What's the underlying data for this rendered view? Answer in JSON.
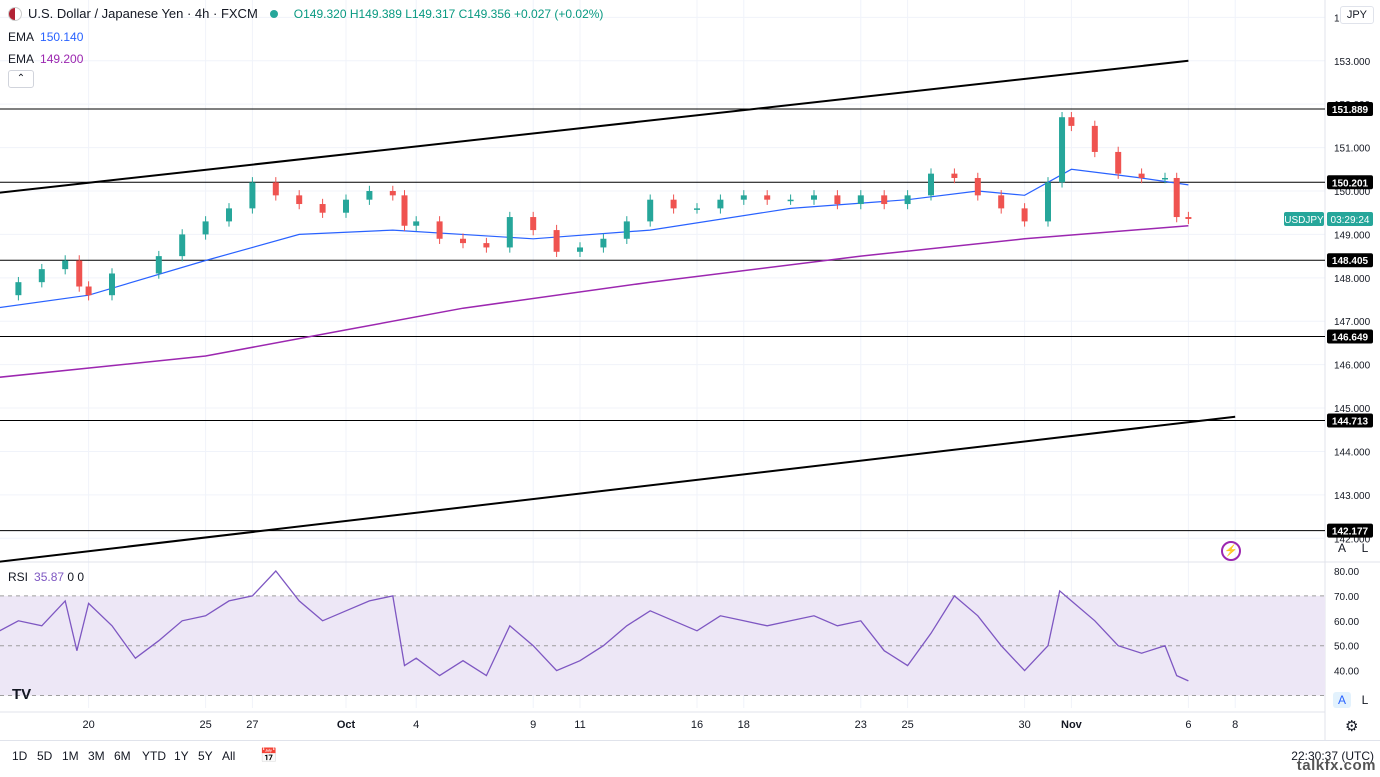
{
  "header": {
    "symbol_title": "U.S. Dollar / Japanese Yen · 4h · FXCM",
    "open": "O149.320",
    "high": "H149.389",
    "low": "L149.317",
    "close": "C149.356",
    "change": "+0.027 (+0.02%)"
  },
  "ema_fast": {
    "label": "EMA",
    "value": "150.140",
    "color": "#2962ff"
  },
  "ema_slow": {
    "label": "EMA",
    "value": "149.200",
    "color": "#9c27b0"
  },
  "rsi": {
    "label": "RSI",
    "value": "35.87",
    "extra1": "0",
    "extra2": "0",
    "color": "#7e57c2"
  },
  "currency_label": "JPY",
  "panel_buttons": {
    "auto": "A",
    "log": "L"
  },
  "symbol_tag": "USDJPY",
  "countdown": "03:29:24",
  "ranges": [
    "1D",
    "5D",
    "1M",
    "3M",
    "6M",
    "YTD",
    "1Y",
    "5Y",
    "All"
  ],
  "clock": "22:30:37 (UTC)",
  "watermark": "talkfx.com",
  "colors": {
    "up": "#26a69a",
    "down": "#ef5350",
    "rsi_band": "#ede7f6"
  },
  "chart_data": {
    "type": "candlestick",
    "timeframe": "4h",
    "y_axis": {
      "range": [
        141.5,
        154.4
      ],
      "ticks": [
        "142.000",
        "143.000",
        "144.000",
        "145.000",
        "146.000",
        "147.000",
        "148.000",
        "149.000",
        "150.000",
        "151.000",
        "152.000",
        "153.000",
        "154.000"
      ]
    },
    "x_axis": {
      "tick_labels": [
        "20",
        "25",
        "27",
        "Oct",
        "4",
        "9",
        "11",
        "16",
        "18",
        "23",
        "25",
        "30",
        "Nov",
        "6",
        "8"
      ]
    },
    "horizontal_levels": [
      "151.889",
      "150.201",
      "148.405",
      "146.649",
      "144.713",
      "142.177"
    ],
    "trendlines": [
      {
        "from": [
          "Sep 16",
          149.95
        ],
        "to": [
          "Nov 6",
          153.0
        ]
      },
      {
        "from": [
          "Sep 16",
          141.45
        ],
        "to": [
          "Nov 8",
          144.8
        ]
      }
    ],
    "last_price": 149.356,
    "close_path": [
      [
        "Sep 16",
        147.6
      ],
      [
        "Sep 17",
        147.9
      ],
      [
        "Sep 18",
        148.2
      ],
      [
        "Sep 19",
        148.4
      ],
      [
        "Sep 19.6",
        147.8
      ],
      [
        "Sep 20",
        147.6
      ],
      [
        "Sep 21",
        148.1
      ],
      [
        "Sep 23",
        148.5
      ],
      [
        "Sep 24",
        149.0
      ],
      [
        "Sep 25",
        149.3
      ],
      [
        "Sep 26",
        149.6
      ],
      [
        "Sep 27",
        150.2
      ],
      [
        "Sep 28",
        149.9
      ],
      [
        "Sep 29",
        149.7
      ],
      [
        "Sep 30",
        149.5
      ],
      [
        "Oct 1",
        149.8
      ],
      [
        "Oct 2",
        150.0
      ],
      [
        "Oct 3",
        149.9
      ],
      [
        "Oct 3.5",
        149.2
      ],
      [
        "Oct 4",
        149.3
      ],
      [
        "Oct 5",
        148.9
      ],
      [
        "Oct 6",
        148.8
      ],
      [
        "Oct 7",
        148.7
      ],
      [
        "Oct 8",
        149.4
      ],
      [
        "Oct 9",
        149.1
      ],
      [
        "Oct 10",
        148.6
      ],
      [
        "Oct 11",
        148.7
      ],
      [
        "Oct 12",
        148.9
      ],
      [
        "Oct 13",
        149.3
      ],
      [
        "Oct 14",
        149.8
      ],
      [
        "Oct 15",
        149.6
      ],
      [
        "Oct 16",
        149.6
      ],
      [
        "Oct 17",
        149.8
      ],
      [
        "Oct 18",
        149.9
      ],
      [
        "Oct 19",
        149.8
      ],
      [
        "Oct 20",
        149.8
      ],
      [
        "Oct 21",
        149.9
      ],
      [
        "Oct 22",
        149.7
      ],
      [
        "Oct 23",
        149.9
      ],
      [
        "Oct 24",
        149.7
      ],
      [
        "Oct 25",
        149.9
      ],
      [
        "Oct 26",
        150.4
      ],
      [
        "Oct 27",
        150.3
      ],
      [
        "Oct 28",
        149.9
      ],
      [
        "Oct 29",
        149.6
      ],
      [
        "Oct 30",
        149.3
      ],
      [
        "Oct 31",
        150.2
      ],
      [
        "Oct 31.6",
        151.7
      ],
      [
        "Nov 1",
        151.5
      ],
      [
        "Nov 2",
        150.9
      ],
      [
        "Nov 3",
        150.4
      ],
      [
        "Nov 4",
        150.3
      ],
      [
        "Nov 5",
        150.3
      ],
      [
        "Nov 5.5",
        149.4
      ],
      [
        "Nov 6",
        149.356
      ]
    ],
    "ema_fast_path": [
      [
        "Sep 16",
        147.3
      ],
      [
        "Sep 20",
        147.6
      ],
      [
        "Sep 25",
        148.4
      ],
      [
        "Sep 29",
        149.0
      ],
      [
        "Oct 3",
        149.1
      ],
      [
        "Oct 9",
        148.9
      ],
      [
        "Oct 14",
        149.1
      ],
      [
        "Oct 20",
        149.6
      ],
      [
        "Oct 25",
        149.8
      ],
      [
        "Oct 28",
        150.0
      ],
      [
        "Oct 30",
        149.9
      ],
      [
        "Nov 1",
        150.5
      ],
      [
        "Nov 4",
        150.3
      ],
      [
        "Nov 6",
        150.14
      ]
    ],
    "ema_slow_path": [
      [
        "Sep 16",
        145.7
      ],
      [
        "Sep 25",
        146.2
      ],
      [
        "Oct 1",
        146.8
      ],
      [
        "Oct 6",
        147.3
      ],
      [
        "Oct 14",
        147.9
      ],
      [
        "Oct 23",
        148.5
      ],
      [
        "Oct 30",
        148.9
      ],
      [
        "Nov 6",
        149.2
      ]
    ],
    "rsi_axis": {
      "range": [
        25,
        82
      ],
      "ticks": [
        "40.00",
        "50.00",
        "60.00",
        "70.00",
        "80.00"
      ],
      "band": [
        30,
        70
      ]
    },
    "rsi_path": [
      [
        "Sep 16",
        55
      ],
      [
        "Sep 17",
        60
      ],
      [
        "Sep 18",
        58
      ],
      [
        "Sep 19",
        68
      ],
      [
        "Sep 19.5",
        48
      ],
      [
        "Sep 20",
        67
      ],
      [
        "Sep 21",
        58
      ],
      [
        "Sep 22",
        45
      ],
      [
        "Sep 23",
        52
      ],
      [
        "Sep 24",
        60
      ],
      [
        "Sep 25",
        62
      ],
      [
        "Sep 26",
        68
      ],
      [
        "Sep 27",
        70
      ],
      [
        "Sep 28",
        80
      ],
      [
        "Sep 29",
        68
      ],
      [
        "Sep 30",
        60
      ],
      [
        "Oct 1",
        64
      ],
      [
        "Oct 2",
        68
      ],
      [
        "Oct 3",
        70
      ],
      [
        "Oct 3.5",
        42
      ],
      [
        "Oct 4",
        45
      ],
      [
        "Oct 5",
        38
      ],
      [
        "Oct 6",
        44
      ],
      [
        "Oct 7",
        38
      ],
      [
        "Oct 8",
        58
      ],
      [
        "Oct 9",
        50
      ],
      [
        "Oct 10",
        40
      ],
      [
        "Oct 11",
        44
      ],
      [
        "Oct 12",
        50
      ],
      [
        "Oct 13",
        58
      ],
      [
        "Oct 14",
        64
      ],
      [
        "Oct 15",
        60
      ],
      [
        "Oct 16",
        56
      ],
      [
        "Oct 17",
        62
      ],
      [
        "Oct 18",
        60
      ],
      [
        "Oct 19",
        58
      ],
      [
        "Oct 20",
        60
      ],
      [
        "Oct 21",
        62
      ],
      [
        "Oct 22",
        58
      ],
      [
        "Oct 23",
        60
      ],
      [
        "Oct 24",
        48
      ],
      [
        "Oct 25",
        42
      ],
      [
        "Oct 26",
        55
      ],
      [
        "Oct 27",
        70
      ],
      [
        "Oct 28",
        62
      ],
      [
        "Oct 29",
        50
      ],
      [
        "Oct 30",
        40
      ],
      [
        "Oct 31",
        50
      ],
      [
        "Oct 31.5",
        72
      ],
      [
        "Nov 1",
        68
      ],
      [
        "Nov 2",
        60
      ],
      [
        "Nov 3",
        50
      ],
      [
        "Nov 4",
        47
      ],
      [
        "Nov 5",
        50
      ],
      [
        "Nov 5.5",
        38
      ],
      [
        "Nov 6",
        35.87
      ]
    ]
  }
}
